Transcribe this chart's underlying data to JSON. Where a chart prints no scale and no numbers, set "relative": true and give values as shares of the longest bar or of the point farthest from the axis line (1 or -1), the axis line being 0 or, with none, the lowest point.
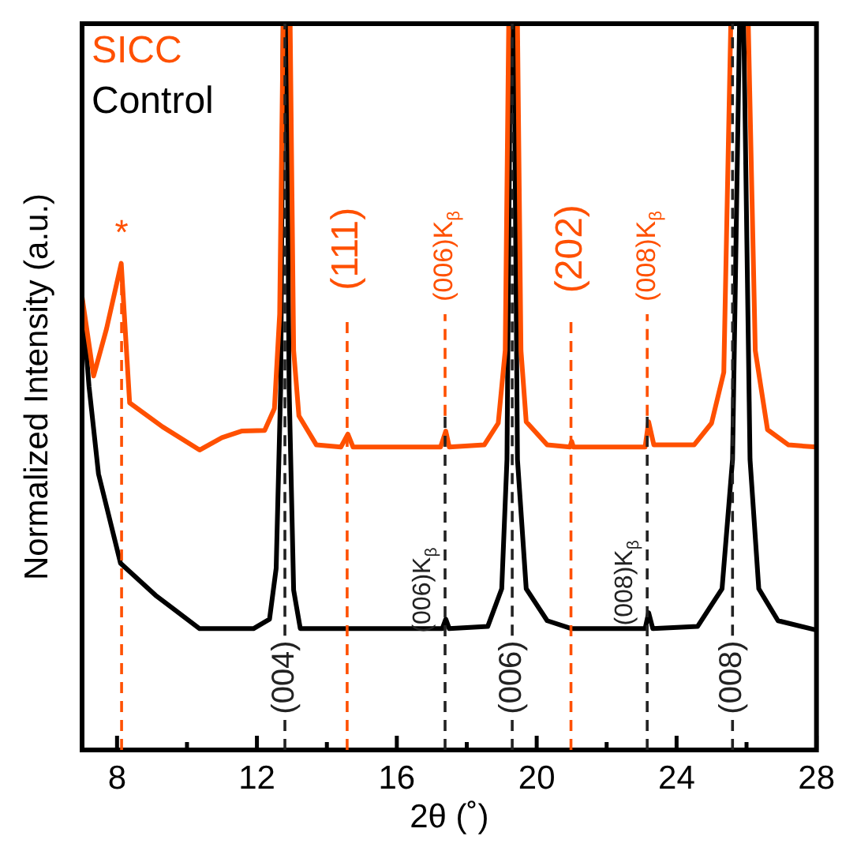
{
  "chart_data": {
    "type": "line",
    "xlabel": "2θ (˚)",
    "ylabel": "Normalized Intensity (a.u.)",
    "relative": true,
    "xlim": [
      7,
      28
    ],
    "xticks": [
      8,
      {
        "value": 10,
        "label": null
      },
      12,
      {
        "value": 14,
        "label": null
      },
      16,
      {
        "value": 18,
        "label": null
      },
      20,
      {
        "value": 22,
        "label": null
      },
      24,
      {
        "value": 26,
        "label": null
      },
      28
    ],
    "legend": "top left",
    "marker": "none",
    "line_style": "solid",
    "grid": false,
    "series": [
      {
        "name": "SICC",
        "color": "#ff5000",
        "x": [
          7,
          7.33,
          7.7,
          8.12,
          8.36,
          9.3,
          10.36,
          11,
          11.56,
          12.22,
          12.5,
          12.65,
          12.75,
          12.95,
          13.05,
          13.2,
          13.7,
          14.4,
          14.6,
          14.75,
          17.25,
          17.4,
          17.5,
          18.5,
          18.9,
          19.1,
          19.2,
          19.45,
          19.55,
          19.7,
          20.3,
          20.95,
          21,
          21.05,
          23.1,
          23.2,
          23.35,
          24.5,
          25,
          25.35,
          25.55,
          26.05,
          26.25,
          26.6,
          27.2,
          28
        ],
        "values": [
          0.624,
          0.515,
          0.58,
          0.67,
          0.478,
          0.445,
          0.413,
          0.43,
          0.439,
          0.44,
          0.47,
          0.6,
          1,
          1,
          0.55,
          0.46,
          0.42,
          0.417,
          0.435,
          0.417,
          0.417,
          0.439,
          0.417,
          0.42,
          0.45,
          0.55,
          1,
          1,
          0.55,
          0.452,
          0.42,
          0.417,
          0.425,
          0.417,
          0.417,
          0.452,
          0.42,
          0.42,
          0.45,
          0.52,
          1,
          1,
          0.55,
          0.441,
          0.42,
          0.417
        ]
      },
      {
        "name": "Control",
        "color": "#000000",
        "x": [
          7,
          7.2,
          7.47,
          8.1,
          9.1,
          10.36,
          11.9,
          12.36,
          12.55,
          12.68,
          12.75,
          12.85,
          12.92,
          13.05,
          13.24,
          17.3,
          17.4,
          17.5,
          18.6,
          19,
          19.15,
          19.25,
          19.35,
          19.45,
          19.7,
          20.3,
          21,
          23.1,
          23.2,
          23.32,
          24.6,
          25.3,
          25.6,
          25.8,
          25.92,
          26.1,
          26.35,
          26.9,
          28
        ],
        "values": [
          0.62,
          0.5,
          0.38,
          0.257,
          0.213,
          0.167,
          0.167,
          0.18,
          0.25,
          0.5,
          1,
          1,
          0.5,
          0.22,
          0.167,
          0.167,
          0.18,
          0.167,
          0.17,
          0.222,
          0.4,
          1,
          1,
          0.4,
          0.222,
          0.178,
          0.167,
          0.167,
          0.189,
          0.167,
          0.17,
          0.222,
          0.4,
          1,
          1,
          0.4,
          0.222,
          0.178,
          0.165
        ]
      }
    ],
    "ref_lines": [
      {
        "axis": "x",
        "value": 8.13,
        "color": "#ff5000",
        "line_style": "dashed"
      },
      {
        "axis": "x",
        "value": 14.58,
        "color": "#ff5000",
        "line_style": "dashed"
      },
      {
        "axis": "x",
        "value": 17.38,
        "color": "#ff5000",
        "line_style": "dashed"
      },
      {
        "axis": "x",
        "value": 20.98,
        "color": "#ff5000",
        "line_style": "dashed"
      },
      {
        "axis": "x",
        "value": 23.16,
        "color": "#ff5000",
        "line_style": "dashed"
      },
      {
        "axis": "x",
        "value": 12.8,
        "color": "#222222",
        "line_style": "dashed"
      },
      {
        "axis": "x",
        "value": 17.38,
        "color": "#222222",
        "line_style": "dashed"
      },
      {
        "axis": "x",
        "value": 19.3,
        "color": "#222222",
        "line_style": "dashed"
      },
      {
        "axis": "x",
        "value": 23.16,
        "color": "#222222",
        "line_style": "dashed"
      },
      {
        "axis": "x",
        "value": 25.6,
        "color": "#222222",
        "line_style": "dashed"
      }
    ],
    "annotations": [
      "*",
      "(111)",
      "(006)K$_{β}$",
      "(202)",
      "(008)K$_{β}$",
      "(004)",
      "(006)K$_{β}$",
      "(006)",
      "(008)K$_{β}$",
      "(008)"
    ]
  }
}
